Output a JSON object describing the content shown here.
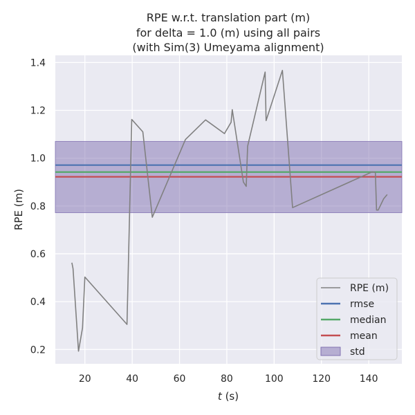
{
  "chart_data": {
    "type": "line",
    "title_lines": [
      "RPE w.r.t. translation part (m)",
      "for delta = 1.0 (m) using all pairs",
      "(with Sim(3) Umeyama alignment)"
    ],
    "xlabel_var": "t",
    "xlabel_unit": " (s)",
    "ylabel": "RPE (m)",
    "xlim": [
      7.5,
      154
    ],
    "ylim": [
      0.14,
      1.43
    ],
    "xticks": [
      20,
      40,
      60,
      80,
      100,
      120,
      140
    ],
    "yticks": [
      0.2,
      0.4,
      0.6,
      0.8,
      1.0,
      1.2,
      1.4
    ],
    "ytick_labels": [
      "0.2",
      "0.4",
      "0.6",
      "0.8",
      "1.0",
      "1.2",
      "1.4"
    ],
    "series": [
      {
        "name": "RPE (m)",
        "color": "#808080",
        "x": [
          14.5,
          15.0,
          17.3,
          19.0,
          20.0,
          37.8,
          39.8,
          44.5,
          48.5,
          62.5,
          71.0,
          79.0,
          81.8,
          82.3,
          87.0,
          88.2,
          88.8,
          96.2,
          96.6,
          103.5,
          107.8,
          141.5,
          142.8,
          143.3,
          144.0,
          146.3,
          147.8
        ],
        "y": [
          0.563,
          0.538,
          0.193,
          0.29,
          0.503,
          0.305,
          1.162,
          1.11,
          0.753,
          1.078,
          1.16,
          1.103,
          1.15,
          1.203,
          0.9,
          0.882,
          1.05,
          1.36,
          1.157,
          1.367,
          0.793,
          0.943,
          0.94,
          0.783,
          0.783,
          0.83,
          0.848
        ]
      }
    ],
    "stats": [
      {
        "name": "rmse",
        "value": 0.971,
        "color": "#4c72b0"
      },
      {
        "name": "median",
        "value": 0.942,
        "color": "#55a868"
      },
      {
        "name": "mean",
        "value": 0.922,
        "color": "#c44e52"
      }
    ],
    "std": {
      "name": "std",
      "low": 0.772,
      "high": 1.07,
      "color": "#8172b2"
    },
    "legend_position": "lower-right",
    "grid": true
  }
}
